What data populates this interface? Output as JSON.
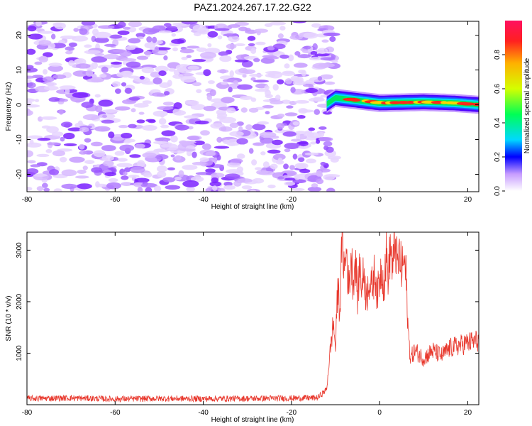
{
  "title": "PAZ1.2024.267.17.22.G22",
  "chart_data": [
    {
      "type": "heatmap",
      "xlabel": "Height of straight line (km)",
      "ylabel": "Frequency (Hz)",
      "xlim": [
        -80,
        22.5
      ],
      "ylim": [
        -25,
        24
      ],
      "xticks": [
        -80,
        -60,
        -40,
        -20,
        0,
        20
      ],
      "yticks": [
        -20,
        -10,
        0,
        10,
        20
      ],
      "noise_region_x": [
        -80,
        -12
      ],
      "signal": {
        "x_start": -12,
        "x_end": 22.5,
        "frequency_center": [
          0.2,
          2.0,
          0.5,
          0.8,
          0.5,
          0
        ],
        "frequency_center_x": [
          -12,
          -10,
          0,
          10,
          17,
          22.5
        ]
      },
      "colorbar": {
        "label": "Normalized spectral amplitude",
        "range": [
          0,
          1
        ],
        "ticks": [
          0.0,
          0.2,
          0.4,
          0.6,
          0.8
        ]
      }
    },
    {
      "type": "line",
      "xlabel": "Height of straight line (km)",
      "ylabel": "SNR (10 * v/v)",
      "xlim": [
        -80,
        22.5
      ],
      "ylim": [
        0,
        3350
      ],
      "xticks": [
        -80,
        -60,
        -40,
        -20,
        0,
        20
      ],
      "yticks": [
        1000,
        2000,
        3000
      ],
      "series": [
        {
          "color": "#e8382d",
          "x": [
            -80,
            -70,
            -60,
            -50,
            -40,
            -30,
            -20,
            -14,
            -12,
            -11.5,
            -11,
            -10.5,
            -10,
            -9.5,
            -9,
            -8.5,
            -8,
            -7.5,
            -7,
            -6.5,
            -6,
            -5.5,
            -5,
            -4.5,
            -4,
            -3.5,
            -3,
            -2.5,
            -2,
            -1.5,
            -1,
            -0.5,
            0,
            0.5,
            1,
            1.5,
            2,
            2.5,
            3,
            3.5,
            4,
            4.5,
            5,
            5.5,
            6,
            6.5,
            7,
            8,
            10,
            12,
            14,
            16,
            18,
            20,
            22.5
          ],
          "y": [
            120,
            130,
            110,
            120,
            115,
            120,
            125,
            135,
            300,
            800,
            1200,
            1600,
            1100,
            2300,
            1800,
            3300,
            2600,
            3000,
            2200,
            2900,
            2400,
            2800,
            2100,
            2700,
            2300,
            2600,
            2000,
            2500,
            2200,
            2400,
            2600,
            2100,
            2450,
            2700,
            2300,
            2900,
            2500,
            3100,
            2600,
            3200,
            2700,
            2900,
            2600,
            2800,
            2500,
            1400,
            900,
            1050,
            900,
            1050,
            950,
            1100,
            1150,
            1200,
            1250
          ]
        }
      ]
    }
  ]
}
